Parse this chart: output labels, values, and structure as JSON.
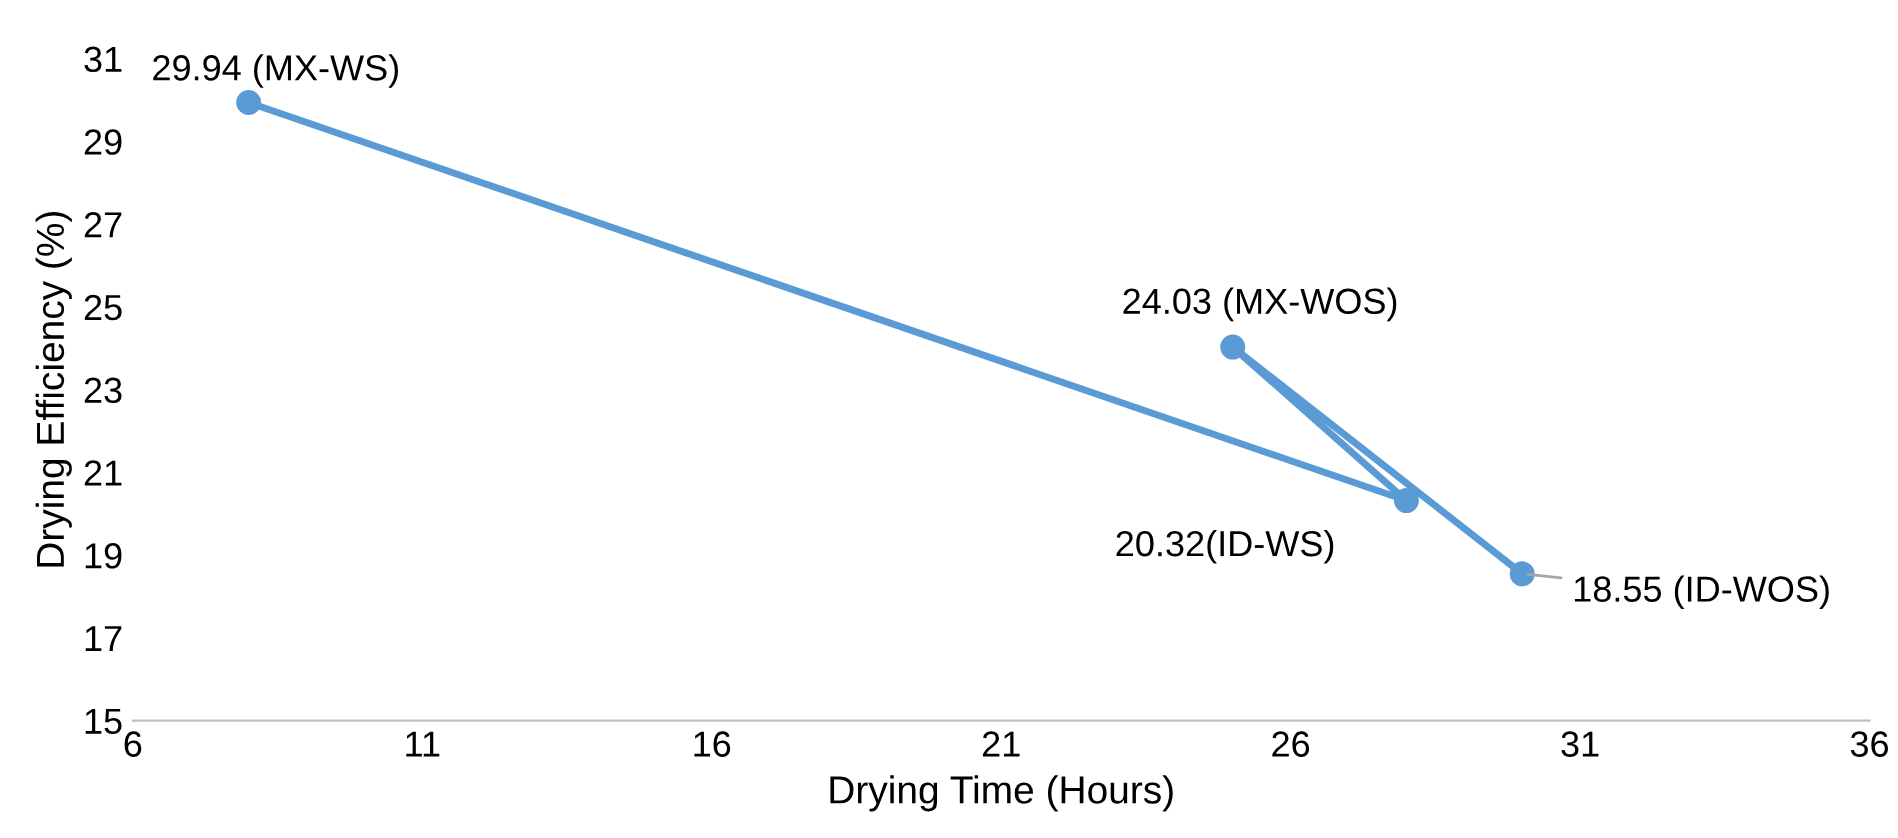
{
  "chart_data": {
    "type": "line",
    "xlabel": "Drying Time (Hours)",
    "ylabel": "Drying Efficiency (%)",
    "series": [
      {
        "color": "#5b9bd5",
        "x": [
          8,
          28,
          25,
          30
        ],
        "values": [
          29.94,
          20.32,
          24.03,
          18.55
        ]
      }
    ],
    "marker": "circle",
    "line_style": "solid",
    "grid": false,
    "legend": false,
    "xlim": [
      6,
      36
    ],
    "xticks": [
      6,
      11,
      16,
      21,
      26,
      31,
      36
    ],
    "ylim": [
      15,
      31
    ],
    "yticks": [
      15,
      17,
      19,
      21,
      23,
      25,
      27,
      29,
      31
    ],
    "annotations": [
      {
        "text": "29.94 (MX-WS)",
        "x": 8,
        "y": 29.94
      },
      {
        "text": "20.32(ID-WS)",
        "x": 28,
        "y": 20.32
      },
      {
        "text": "24.03 (MX-WOS)",
        "x": 25,
        "y": 24.03
      },
      {
        "text": "18.55 (ID-WOS)",
        "x": 30,
        "y": 18.55
      }
    ]
  }
}
